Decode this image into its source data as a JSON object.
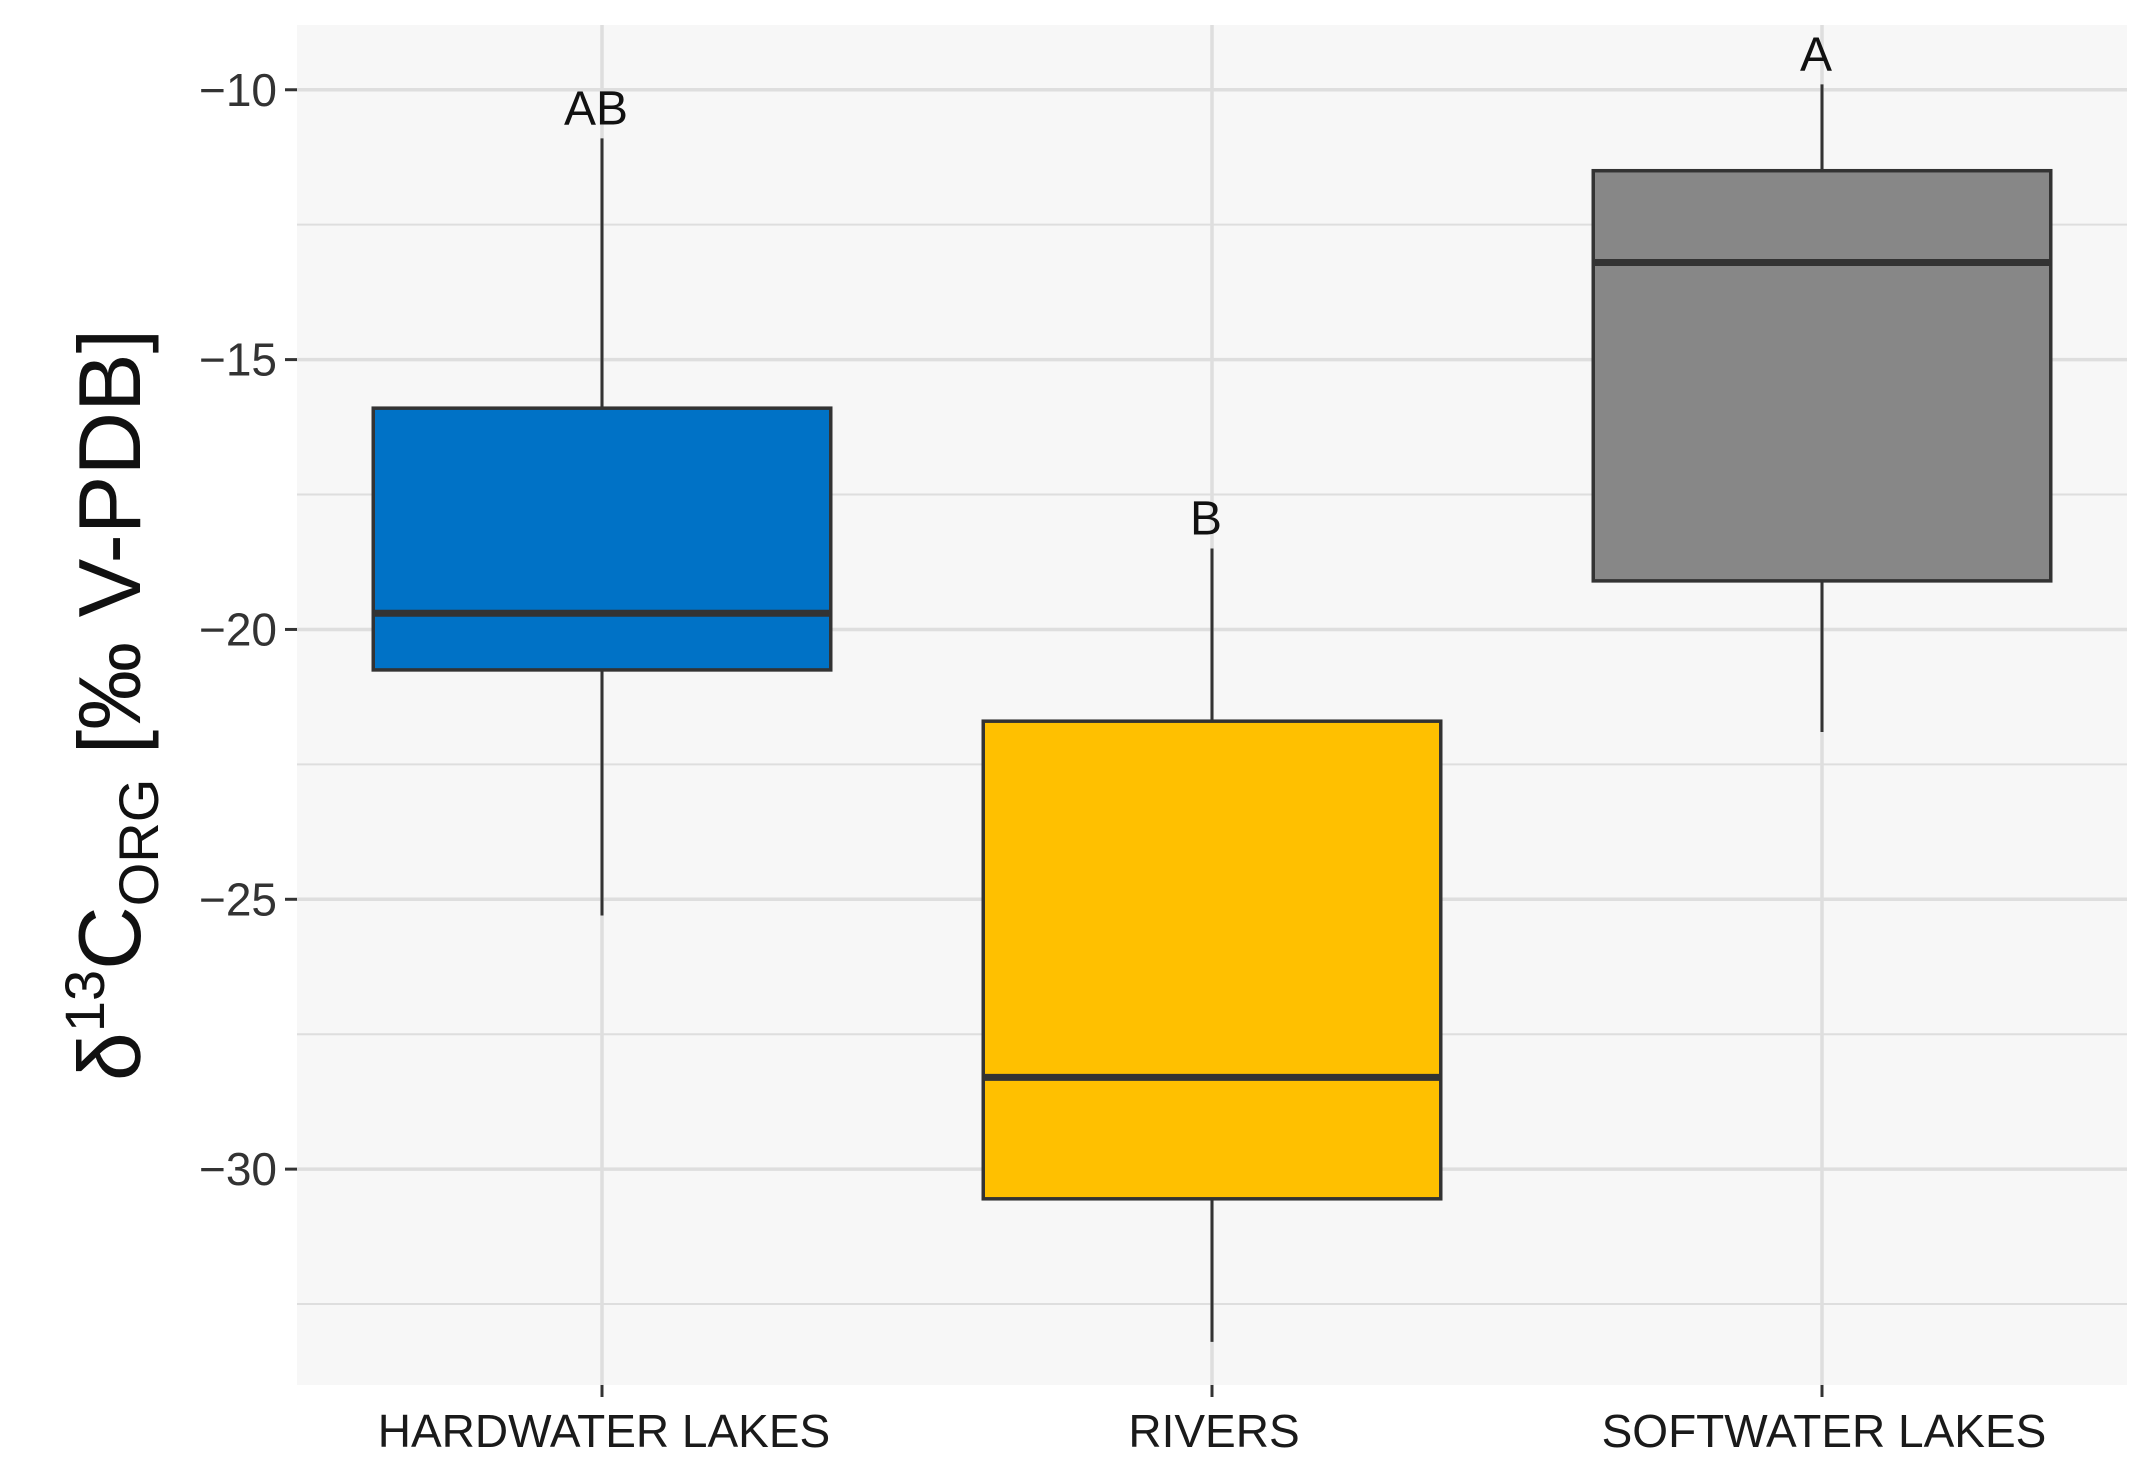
{
  "chart_data": {
    "type": "box",
    "categories": [
      "HARDWATER LAKES",
      "RIVERS",
      "SOFTWATER LAKES"
    ],
    "boxes": [
      {
        "category": "HARDWATER LAKES",
        "whisker_low": -25.3,
        "q1": -20.75,
        "median": -19.7,
        "q3": -15.9,
        "whisker_high": -10.9,
        "color": "#0072C6",
        "significance": "AB"
      },
      {
        "category": "RIVERS",
        "whisker_low": -33.2,
        "q1": -30.55,
        "median": -28.3,
        "q3": -21.7,
        "whisker_high": -18.5,
        "color": "#FFC000",
        "significance": "B"
      },
      {
        "category": "SOFTWATER LAKES",
        "whisker_low": -21.9,
        "q1": -19.1,
        "median": -13.2,
        "q3": -11.5,
        "whisker_high": -9.9,
        "color": "#878787",
        "significance": "A"
      }
    ],
    "ylabel": {
      "delta": "δ",
      "superscript": "13",
      "element": "C",
      "subscript": "ORG",
      "unit": " [‰ V-PDB]"
    },
    "xlabel": "",
    "y_ticks": [
      -10,
      -15,
      -20,
      -25,
      -30
    ],
    "y_tick_labels": [
      "−10",
      "−15",
      "−20",
      "−25",
      "−30"
    ],
    "ylim": [
      -34.0,
      -8.8
    ],
    "grid": true,
    "panel_background": "#F7F7F7",
    "grid_color": "#DEDEDE",
    "outline_color": "#333333"
  }
}
